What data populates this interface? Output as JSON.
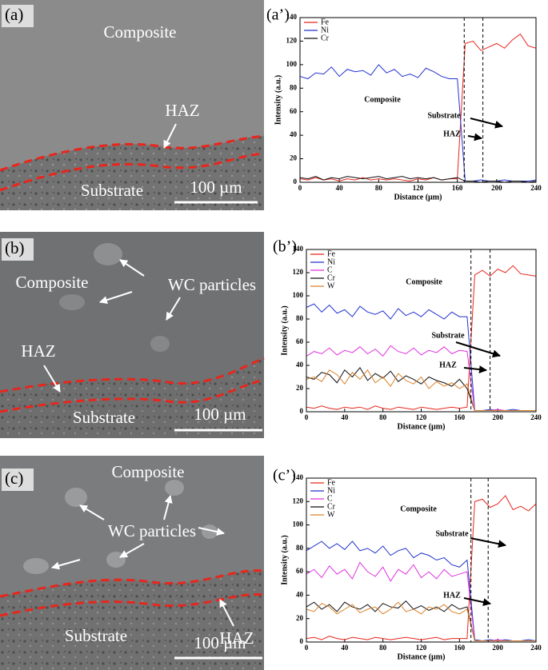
{
  "panels": [
    {
      "label": "(a)",
      "texts": [
        "Composite",
        "HAZ",
        "Substrate"
      ],
      "scale_bar": "100 µm"
    },
    {
      "label": "(b)",
      "texts": [
        "Composite",
        "WC particles",
        "HAZ",
        "Substrate"
      ],
      "scale_bar": "100 µm"
    },
    {
      "label": "(c)",
      "texts": [
        "Composite",
        "WC particles",
        "HAZ",
        "Substrate"
      ],
      "scale_bar": "100 µm"
    }
  ],
  "chart_data": [
    {
      "type": "line",
      "title": "(a’)",
      "xlabel": "Distance (µm)",
      "ylabel": "Intensity (a.u.)",
      "x": [
        0,
        8,
        16,
        24,
        32,
        40,
        48,
        56,
        64,
        72,
        80,
        88,
        96,
        104,
        112,
        120,
        128,
        136,
        144,
        152,
        160,
        168,
        176,
        184,
        192,
        200,
        208,
        216,
        224,
        232,
        240
      ],
      "xlim": [
        0,
        240
      ],
      "xticks": [
        0,
        40,
        80,
        120,
        160,
        200,
        240
      ],
      "ylim": [
        0,
        140
      ],
      "yticks": [
        0,
        20,
        40,
        60,
        80,
        100,
        120,
        140
      ],
      "legend": "upper left",
      "vlines": [
        167,
        186
      ],
      "annotations": [
        "Composite",
        "Substrate",
        "HAZ"
      ],
      "series": [
        {
          "name": "Fe",
          "color": "#e8261c",
          "values": [
            3,
            2,
            4,
            2,
            3,
            1,
            3,
            2,
            4,
            2,
            3,
            2,
            3,
            2,
            1,
            3,
            2,
            4,
            2,
            3,
            3,
            118,
            120,
            112,
            115,
            118,
            114,
            121,
            126,
            116,
            114
          ]
        },
        {
          "name": "Ni",
          "color": "#2233cc",
          "values": [
            90,
            88,
            93,
            92,
            98,
            90,
            96,
            94,
            95,
            91,
            100,
            93,
            96,
            90,
            92,
            89,
            97,
            94,
            90,
            88,
            88,
            1,
            1,
            2,
            1,
            1,
            2,
            1,
            1,
            1,
            2
          ]
        },
        {
          "name": "Cr",
          "color": "#111111",
          "values": [
            4,
            3,
            5,
            2,
            4,
            3,
            5,
            4,
            3,
            4,
            5,
            3,
            4,
            5,
            3,
            4,
            3,
            4,
            2,
            3,
            4,
            1,
            1,
            0,
            1,
            1,
            0,
            1,
            1,
            0,
            1
          ]
        }
      ]
    },
    {
      "type": "line",
      "title": "(b’)",
      "xlabel": "Distance (µm)",
      "ylabel": "Intensity (a.u.)",
      "x": [
        0,
        8,
        16,
        24,
        32,
        40,
        48,
        56,
        64,
        72,
        80,
        88,
        96,
        104,
        112,
        120,
        128,
        136,
        144,
        152,
        160,
        168,
        176,
        184,
        192,
        200,
        208,
        216,
        224,
        232,
        240
      ],
      "xlim": [
        0,
        240
      ],
      "xticks": [
        0,
        40,
        80,
        120,
        160,
        200,
        240
      ],
      "ylim": [
        0,
        140
      ],
      "yticks": [
        0,
        20,
        40,
        60,
        80,
        100,
        120,
        140
      ],
      "legend": "upper left",
      "vlines": [
        172,
        192
      ],
      "annotations": [
        "Composite",
        "Substrate",
        "HAZ"
      ],
      "series": [
        {
          "name": "Fe",
          "color": "#e8261c",
          "values": [
            4,
            3,
            5,
            3,
            2,
            4,
            3,
            4,
            2,
            5,
            3,
            2,
            4,
            3,
            2,
            4,
            3,
            2,
            3,
            4,
            3,
            4,
            118,
            122,
            117,
            123,
            120,
            126,
            119,
            118,
            117
          ]
        },
        {
          "name": "Ni",
          "color": "#2233cc",
          "values": [
            90,
            93,
            86,
            92,
            85,
            88,
            82,
            91,
            86,
            84,
            87,
            80,
            89,
            83,
            86,
            82,
            88,
            84,
            80,
            86,
            82,
            82,
            1,
            1,
            2,
            1,
            1,
            2,
            1,
            1,
            1
          ]
        },
        {
          "name": "C",
          "color": "#dd33dd",
          "values": [
            48,
            52,
            50,
            55,
            49,
            53,
            51,
            56,
            50,
            54,
            48,
            57,
            52,
            50,
            55,
            49,
            53,
            51,
            56,
            50,
            53,
            52,
            1,
            1,
            1,
            2,
            1,
            1,
            1,
            1,
            1
          ]
        },
        {
          "name": "Cr",
          "color": "#111111",
          "values": [
            30,
            28,
            34,
            32,
            25,
            36,
            30,
            38,
            27,
            33,
            29,
            35,
            26,
            31,
            28,
            24,
            30,
            27,
            25,
            22,
            28,
            20,
            1,
            1,
            1,
            1,
            1,
            1,
            1,
            1,
            1
          ]
        },
        {
          "name": "W",
          "color": "#d9822b",
          "values": [
            28,
            30,
            26,
            36,
            32,
            24,
            34,
            28,
            36,
            25,
            30,
            22,
            33,
            27,
            24,
            30,
            20,
            26,
            22,
            25,
            20,
            24,
            1,
            1,
            1,
            1,
            1,
            1,
            1,
            1,
            1
          ]
        }
      ]
    },
    {
      "type": "line",
      "title": "(c’)",
      "xlabel": "Distance (µm)",
      "ylabel": "Intensity (a.u.)",
      "x": [
        0,
        8,
        16,
        24,
        32,
        40,
        48,
        56,
        64,
        72,
        80,
        88,
        96,
        104,
        112,
        120,
        128,
        136,
        144,
        152,
        160,
        168,
        176,
        184,
        192,
        200,
        208,
        216,
        224,
        232,
        240
      ],
      "xlim": [
        0,
        240
      ],
      "xticks": [
        0,
        40,
        80,
        120,
        160,
        200,
        240
      ],
      "ylim": [
        0,
        140
      ],
      "yticks": [
        0,
        20,
        40,
        60,
        80,
        100,
        120,
        140
      ],
      "legend": "upper left",
      "vlines": [
        172,
        190
      ],
      "annotations": [
        "Composite",
        "Substrate",
        "HAZ"
      ],
      "series": [
        {
          "name": "Fe",
          "color": "#e8261c",
          "values": [
            3,
            4,
            2,
            5,
            3,
            2,
            4,
            3,
            2,
            4,
            3,
            2,
            3,
            4,
            3,
            2,
            3,
            4,
            2,
            3,
            3,
            3,
            120,
            122,
            115,
            118,
            125,
            113,
            116,
            112,
            118
          ]
        },
        {
          "name": "Ni",
          "color": "#2233cc",
          "values": [
            78,
            82,
            86,
            80,
            84,
            79,
            86,
            78,
            80,
            76,
            82,
            74,
            78,
            80,
            72,
            76,
            74,
            70,
            72,
            66,
            64,
            70,
            2,
            1,
            2,
            1,
            2,
            1,
            1,
            2,
            1
          ]
        },
        {
          "name": "C",
          "color": "#dd33dd",
          "values": [
            58,
            62,
            55,
            65,
            58,
            62,
            54,
            68,
            60,
            56,
            64,
            52,
            62,
            58,
            66,
            55,
            60,
            54,
            62,
            56,
            58,
            60,
            1,
            1,
            1,
            2,
            1,
            1,
            1,
            1,
            1
          ]
        },
        {
          "name": "Cr",
          "color": "#111111",
          "values": [
            30,
            34,
            28,
            32,
            26,
            34,
            30,
            28,
            32,
            26,
            33,
            30,
            29,
            35,
            28,
            31,
            27,
            30,
            26,
            32,
            28,
            30,
            1,
            1,
            1,
            1,
            1,
            1,
            1,
            1,
            1
          ]
        },
        {
          "name": "W",
          "color": "#d9822b",
          "values": [
            28,
            26,
            33,
            30,
            24,
            28,
            32,
            25,
            28,
            30,
            24,
            28,
            34,
            26,
            28,
            24,
            30,
            28,
            32,
            26,
            24,
            28,
            1,
            1,
            1,
            1,
            1,
            1,
            1,
            1,
            1
          ]
        }
      ]
    }
  ]
}
